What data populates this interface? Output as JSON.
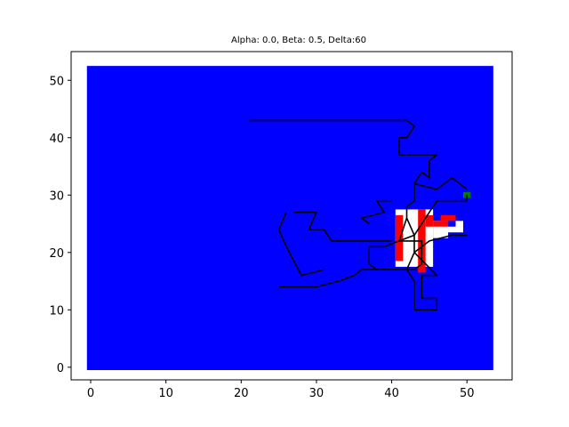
{
  "chart_data": {
    "type": "heatmap",
    "title": "Alpha: 0.0, Beta: 0.5, Delta:60",
    "xlabel": "",
    "ylabel": "",
    "xlim": [
      -2.6,
      56.0
    ],
    "ylim": [
      -2.2,
      55.0
    ],
    "xticks": [
      "0",
      "10",
      "20",
      "30",
      "40",
      "50"
    ],
    "yticks": [
      "0",
      "10",
      "20",
      "30",
      "40",
      "50"
    ],
    "grid": false,
    "legend": "none",
    "colors": {
      "background_cells": "#0000ff",
      "explored_cells": "#ffffff",
      "obstacle_cells": "#ff0000",
      "goal_cell": "#008000",
      "path": "#000000"
    },
    "field": {
      "x": [
        -0.5,
        53.5
      ],
      "y": [
        -0.5,
        52.5
      ]
    },
    "white_region": [
      {
        "x": [
          40.5,
          45.5
        ],
        "y": [
          17.5,
          27.5
        ]
      },
      {
        "x": [
          45.5,
          47.5
        ],
        "y": [
          22.5,
          25.5
        ]
      },
      {
        "x": [
          47.5,
          48.5
        ],
        "y": [
          23.5,
          24.5
        ]
      },
      {
        "x": [
          48.5,
          49.5
        ],
        "y": [
          23.5,
          25.5
        ]
      }
    ],
    "red_cells": [
      {
        "x": [
          40.5,
          41.5
        ],
        "y": [
          18.5,
          26.5
        ]
      },
      {
        "x": [
          43.5,
          44.5
        ],
        "y": [
          16.5,
          27.5
        ]
      },
      {
        "x": [
          44.5,
          45.5
        ],
        "y": [
          24.5,
          26.5
        ]
      },
      {
        "x": [
          45.5,
          47.5
        ],
        "y": [
          24.5,
          25.5
        ]
      },
      {
        "x": [
          46.5,
          48.5
        ],
        "y": [
          25.5,
          26.5
        ]
      }
    ],
    "goal_cells": [
      {
        "x": [
          49.5,
          50.5
        ],
        "y": [
          29.5,
          30.5
        ]
      }
    ],
    "paths": [
      [
        [
          21,
          43
        ],
        [
          42,
          43
        ],
        [
          43,
          42
        ],
        [
          42,
          40
        ],
        [
          41,
          40
        ],
        [
          41,
          37
        ],
        [
          46,
          37
        ],
        [
          45,
          36
        ],
        [
          45,
          33
        ],
        [
          44,
          34
        ],
        [
          43,
          32
        ],
        [
          43,
          29
        ],
        [
          42,
          28
        ],
        [
          42,
          26
        ],
        [
          43,
          23
        ],
        [
          43,
          20
        ],
        [
          42,
          17
        ],
        [
          43,
          15
        ],
        [
          43,
          12
        ],
        [
          43,
          10
        ],
        [
          46,
          10
        ],
        [
          46,
          12
        ],
        [
          44,
          12
        ],
        [
          44,
          16
        ],
        [
          46,
          16
        ],
        [
          43,
          20
        ],
        [
          45,
          22
        ],
        [
          48,
          23
        ],
        [
          50,
          23
        ]
      ],
      [
        [
          25,
          14
        ],
        [
          30,
          14
        ],
        [
          33,
          15
        ],
        [
          35,
          16
        ],
        [
          36,
          17
        ],
        [
          41,
          17
        ],
        [
          43,
          17
        ],
        [
          44,
          18
        ],
        [
          44,
          22
        ],
        [
          41,
          22
        ],
        [
          42,
          26
        ]
      ],
      [
        [
          26,
          27
        ],
        [
          25,
          24
        ],
        [
          26,
          21
        ],
        [
          28,
          16
        ],
        [
          31,
          17
        ]
      ],
      [
        [
          27,
          27
        ],
        [
          30,
          27
        ],
        [
          29,
          24
        ],
        [
          31,
          24
        ],
        [
          32,
          22
        ],
        [
          36,
          22
        ],
        [
          40,
          22
        ]
      ],
      [
        [
          37,
          25
        ],
        [
          36,
          26
        ],
        [
          39,
          27
        ],
        [
          38,
          29
        ],
        [
          40,
          29
        ]
      ],
      [
        [
          41,
          17
        ],
        [
          38,
          17
        ],
        [
          37,
          18
        ],
        [
          37,
          21
        ],
        [
          39,
          21
        ],
        [
          43,
          23
        ],
        [
          46,
          29
        ],
        [
          50,
          29
        ],
        [
          50,
          30
        ]
      ],
      [
        [
          43,
          32
        ],
        [
          46,
          31
        ],
        [
          48,
          33
        ],
        [
          50,
          31
        ]
      ]
    ]
  }
}
